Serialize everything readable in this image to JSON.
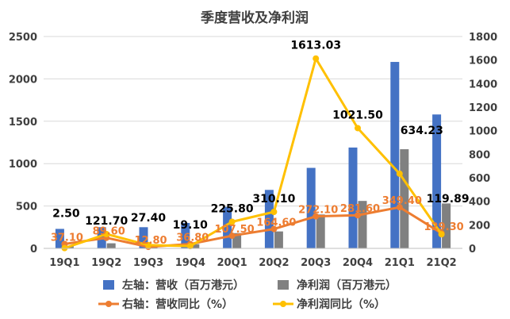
{
  "chart_data": {
    "type": "bar",
    "title": "季度营收及净利润",
    "categories": [
      "19Q1",
      "19Q2",
      "19Q3",
      "19Q4",
      "20Q1",
      "20Q2",
      "20Q3",
      "20Q4",
      "21Q1",
      "21Q2"
    ],
    "y_left": {
      "min": 0,
      "max": 2500,
      "ticks": [
        "0",
        "500",
        "1000",
        "1500",
        "2000",
        "2500"
      ]
    },
    "y_right": {
      "min": 0,
      "max": 1800,
      "ticks": [
        "0",
        "200",
        "400",
        "600",
        "800",
        "1000",
        "1200",
        "1400",
        "1600",
        "1800"
      ]
    },
    "series": [
      {
        "name": "左轴：营收（百万港元）",
        "kind": "bar",
        "axis": "left",
        "color": "#4472C4",
        "values": [
          230,
          250,
          250,
          300,
          490,
          690,
          950,
          1190,
          2200,
          1580
        ]
      },
      {
        "name": "净利润（百万港元）",
        "kind": "bar",
        "axis": "left",
        "color": "#808080",
        "values": [
          30,
          60,
          40,
          50,
          180,
          200,
          400,
          560,
          1170,
          530
        ]
      },
      {
        "name": "右轴：营收同比（%）",
        "kind": "line",
        "axis": "right",
        "color": "#ED7D31",
        "values": [
          37.1,
          89.6,
          12.8,
          36.8,
          107.5,
          164.6,
          272.1,
          281.6,
          349.4,
          129.3
        ],
        "labels": [
          "37.10",
          "89.60",
          "12.80",
          "36.80",
          "107.50",
          "164.60",
          "272.10",
          "281.60",
          "349.40",
          "129.30"
        ]
      },
      {
        "name": "净利润同比（%）",
        "kind": "line",
        "axis": "right",
        "color": "#FFC000",
        "values": [
          2.5,
          121.7,
          27.4,
          19.1,
          225.8,
          310.1,
          1613.03,
          1021.5,
          634.23,
          119.89
        ],
        "labels": [
          "2.50",
          "121.70",
          "27.40",
          "19.10",
          "225.80",
          "310.10",
          "1613.03",
          "1021.50",
          "634.23",
          "119.89"
        ]
      }
    ],
    "legend": "bottom"
  }
}
